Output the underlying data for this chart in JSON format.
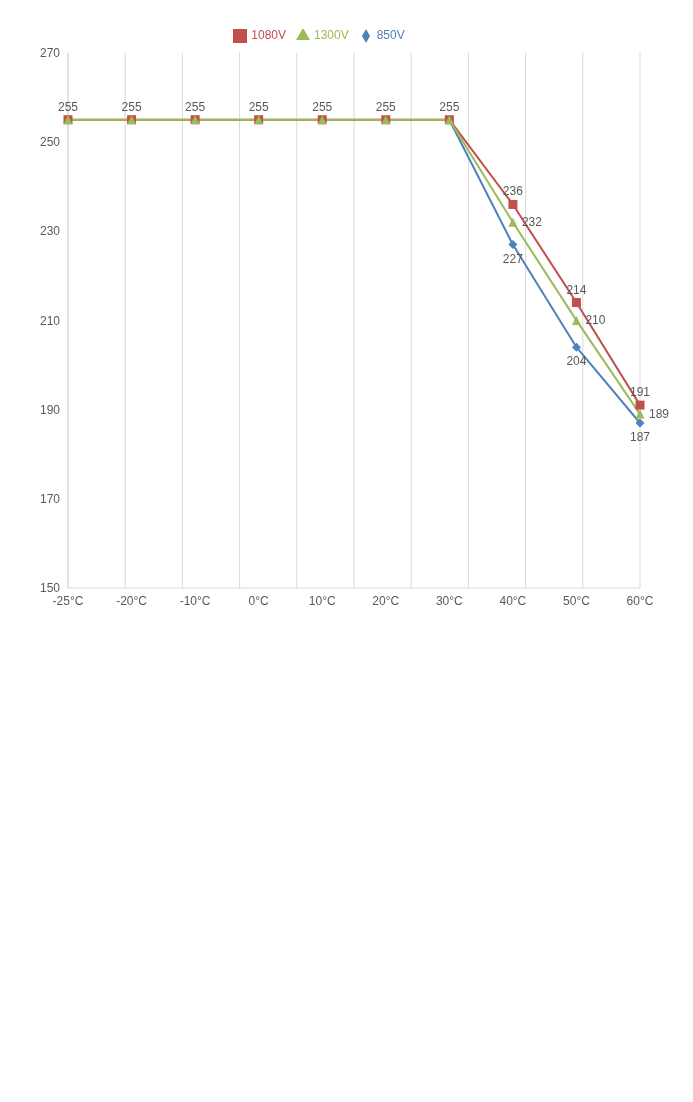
{
  "chart_data": {
    "type": "line",
    "categories": [
      "-25°C",
      "-20°C",
      "-10°C",
      "0°C",
      "10°C",
      "20°C",
      "30°C",
      "40°C",
      "50°C",
      "60°C"
    ],
    "series": [
      {
        "name": "850V",
        "color": "#4f81bd",
        "marker": "diamond",
        "values": [
          null,
          null,
          null,
          null,
          null,
          null,
          255,
          227,
          204,
          187
        ],
        "value_labels": [
          null,
          null,
          null,
          null,
          null,
          null,
          null,
          "227",
          "204",
          "187"
        ]
      },
      {
        "name": "1080V",
        "color": "#c0504d",
        "marker": "square",
        "values": [
          255,
          255,
          255,
          255,
          255,
          255,
          255,
          236,
          214,
          191
        ],
        "value_labels": [
          null,
          null,
          null,
          null,
          null,
          null,
          null,
          "236",
          "214",
          "191"
        ]
      },
      {
        "name": "1300V",
        "color": "#9bbb59",
        "marker": "triangle",
        "values": [
          255,
          255,
          255,
          255,
          255,
          255,
          255,
          232,
          210,
          189
        ],
        "value_labels": [
          "255",
          "255",
          "255",
          "255",
          "255",
          "255",
          "255",
          "232",
          "210",
          "189"
        ]
      }
    ],
    "ylim": [
      150,
      270
    ],
    "yticks": [
      150,
      170,
      190,
      210,
      230,
      250,
      270
    ],
    "grid": "x",
    "legend": "top"
  }
}
